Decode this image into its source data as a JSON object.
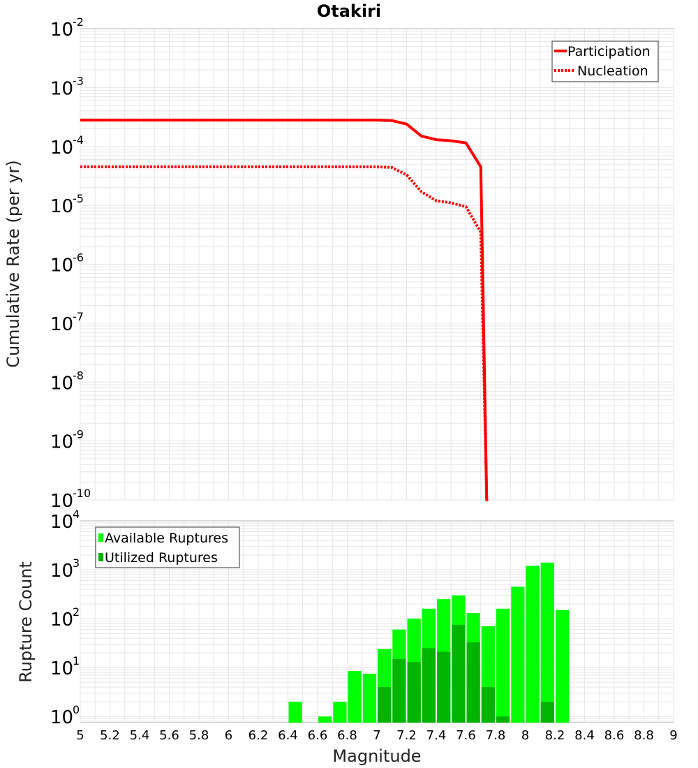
{
  "title": "Otakiri",
  "x_axis": {
    "label": "Magnitude",
    "ticks": [
      "5",
      "5.2",
      "5.4",
      "5.6",
      "5.8",
      "6",
      "6.2",
      "6.4",
      "6.6",
      "6.8",
      "7",
      "7.2",
      "7.4",
      "7.6",
      "7.8",
      "8",
      "8.2",
      "8.4",
      "8.6",
      "8.8",
      "9"
    ]
  },
  "colors": {
    "line": "#ff0000",
    "available": "#00ff00",
    "utilized": "#00b400",
    "grid": "#e6e6e6",
    "frame": "#b4b4b4"
  },
  "chart_data": [
    {
      "type": "line",
      "panel": "top",
      "title": "Otakiri",
      "xlabel": "Magnitude",
      "ylabel": "Cumulative Rate (per yr)",
      "xlim": [
        5,
        9
      ],
      "ylim": [
        1e-10,
        0.01
      ],
      "yscale": "log",
      "ytick_base": "10",
      "yticks": [
        {
          "value": 0.01,
          "exp": "-2"
        },
        {
          "value": 0.001,
          "exp": "-3"
        },
        {
          "value": 0.0001,
          "exp": "-4"
        },
        {
          "value": 1e-05,
          "exp": "-5"
        },
        {
          "value": 1e-06,
          "exp": "-6"
        },
        {
          "value": 1e-07,
          "exp": "-7"
        },
        {
          "value": 1e-08,
          "exp": "-8"
        },
        {
          "value": 1e-09,
          "exp": "-9"
        },
        {
          "value": 1e-10,
          "exp": "-10"
        }
      ],
      "legend_position": "top-right",
      "series": [
        {
          "name": "Participation",
          "style": "solid",
          "x": [
            5.0,
            7.0,
            7.1,
            7.2,
            7.3,
            7.4,
            7.5,
            7.6,
            7.7,
            7.74,
            7.75
          ],
          "y": [
            0.00028,
            0.00028,
            0.000275,
            0.00024,
            0.00015,
            0.00013,
            0.000125,
            0.000115,
            4.5e-05,
            1e-10,
            1e-10
          ]
        },
        {
          "name": "Nucleation",
          "style": "dotted",
          "x": [
            5.0,
            7.0,
            7.1,
            7.2,
            7.3,
            7.4,
            7.5,
            7.6,
            7.7,
            7.74,
            7.75
          ],
          "y": [
            4.5e-05,
            4.5e-05,
            4.4e-05,
            3.3e-05,
            1.7e-05,
            1.2e-05,
            1.1e-05,
            9.5e-06,
            3.5e-06,
            1e-10,
            1e-10
          ]
        }
      ]
    },
    {
      "type": "bar",
      "panel": "bottom",
      "xlabel": "Magnitude",
      "ylabel": "Rupture Count",
      "xlim": [
        5,
        9
      ],
      "ylim": [
        0.75,
        10000
      ],
      "yscale": "log",
      "ytick_base": "10",
      "yticks": [
        {
          "value": 1,
          "exp": "0"
        },
        {
          "value": 10,
          "exp": "1"
        },
        {
          "value": 100,
          "exp": "2"
        },
        {
          "value": 1000,
          "exp": "3"
        },
        {
          "value": 10000,
          "exp": "4"
        }
      ],
      "bin_width": 0.1,
      "legend_position": "top-left",
      "categories": [
        6.45,
        6.55,
        6.65,
        6.75,
        6.85,
        6.95,
        7.05,
        7.15,
        7.25,
        7.35,
        7.45,
        7.55,
        7.65,
        7.75,
        7.85,
        7.95,
        8.05,
        8.15,
        8.25
      ],
      "series": [
        {
          "name": "Available Ruptures",
          "values": [
            2,
            0,
            1,
            2,
            8.5,
            7.5,
            24,
            60,
            100,
            160,
            250,
            300,
            130,
            70,
            160,
            450,
            1200,
            1400,
            150
          ]
        },
        {
          "name": "Utilized Ruptures",
          "values": [
            0,
            0,
            0,
            0,
            0,
            0,
            4,
            15,
            13,
            25,
            21,
            75,
            33,
            4,
            1,
            0,
            0,
            2,
            0
          ]
        }
      ]
    }
  ]
}
